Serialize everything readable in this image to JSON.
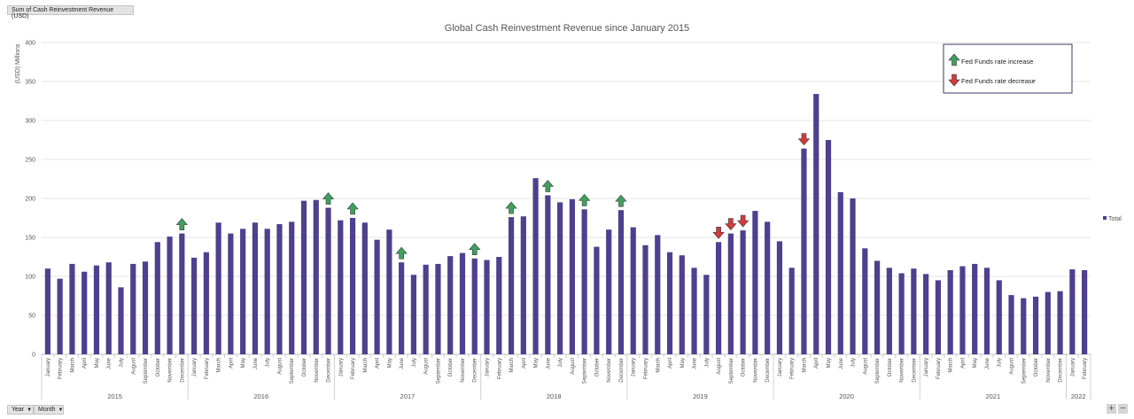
{
  "pivot": {
    "value_field": "Sum of Cash Reinvestment Revenue (USD)",
    "row_fields": [
      "Year",
      "Month"
    ]
  },
  "chart_data": {
    "type": "bar",
    "title": "Global Cash Reinvestment Revenue since January 2015",
    "ylabel": "(USD) Millions",
    "xlabel": "",
    "ylim": [
      0,
      400
    ],
    "yticks": [
      0,
      50,
      100,
      150,
      200,
      250,
      300,
      350,
      400
    ],
    "grid": true,
    "legend_position": "right",
    "bar_color": "#4f3f8f",
    "years": [
      {
        "label": "2015",
        "months": 12
      },
      {
        "label": "2016",
        "months": 12
      },
      {
        "label": "2017",
        "months": 12
      },
      {
        "label": "2018",
        "months": 12
      },
      {
        "label": "2019",
        "months": 12
      },
      {
        "label": "2020",
        "months": 12
      },
      {
        "label": "2021",
        "months": 12
      },
      {
        "label": "2022",
        "months": 2
      }
    ],
    "categories": [
      "January",
      "February",
      "March",
      "April",
      "May",
      "June",
      "July",
      "August",
      "September",
      "October",
      "November",
      "December",
      "January",
      "February",
      "March",
      "April",
      "May",
      "June",
      "July",
      "August",
      "September",
      "October",
      "November",
      "December",
      "January",
      "February",
      "March",
      "April",
      "May",
      "June",
      "July",
      "August",
      "September",
      "October",
      "November",
      "December",
      "January",
      "February",
      "March",
      "April",
      "May",
      "June",
      "July",
      "August",
      "September",
      "October",
      "November",
      "December",
      "January",
      "February",
      "March",
      "April",
      "May",
      "June",
      "July",
      "August",
      "September",
      "October",
      "November",
      "December",
      "January",
      "February",
      "March",
      "April",
      "May",
      "June",
      "July",
      "August",
      "September",
      "October",
      "November",
      "December",
      "January",
      "February",
      "March",
      "April",
      "May",
      "June",
      "July",
      "August",
      "September",
      "October",
      "November",
      "December",
      "January",
      "February"
    ],
    "series": [
      {
        "name": "Total",
        "values": [
          110,
          97,
          116,
          106,
          114,
          118,
          86,
          116,
          119,
          144,
          151,
          155,
          124,
          131,
          169,
          155,
          161,
          169,
          161,
          167,
          170,
          197,
          198,
          188,
          172,
          175,
          169,
          147,
          160,
          118,
          102,
          115,
          116,
          126,
          130,
          123,
          121,
          125,
          176,
          177,
          226,
          204,
          195,
          199,
          186,
          138,
          160,
          185,
          163,
          140,
          153,
          131,
          127,
          111,
          102,
          144,
          155,
          159,
          184,
          170,
          145,
          111,
          264,
          334,
          275,
          208,
          200,
          136,
          120,
          111,
          104,
          110,
          103,
          95,
          108,
          113,
          116,
          111,
          95,
          76,
          72,
          74,
          80,
          81,
          109,
          108
        ]
      }
    ],
    "annotations": [
      {
        "index": 11,
        "type": "increase"
      },
      {
        "index": 23,
        "type": "increase"
      },
      {
        "index": 25,
        "type": "increase"
      },
      {
        "index": 29,
        "type": "increase"
      },
      {
        "index": 35,
        "type": "increase"
      },
      {
        "index": 38,
        "type": "increase"
      },
      {
        "index": 41,
        "type": "increase"
      },
      {
        "index": 44,
        "type": "increase"
      },
      {
        "index": 47,
        "type": "increase"
      },
      {
        "index": 55,
        "type": "decrease"
      },
      {
        "index": 56,
        "type": "decrease"
      },
      {
        "index": 57,
        "type": "decrease"
      },
      {
        "index": 62,
        "type": "decrease"
      }
    ],
    "annotation_legend": {
      "increase": "Fed Funds rate increase",
      "decrease": "Fed Funds rate decrease",
      "increase_color": "#3fa05e",
      "decrease_color": "#d33a3a"
    }
  }
}
